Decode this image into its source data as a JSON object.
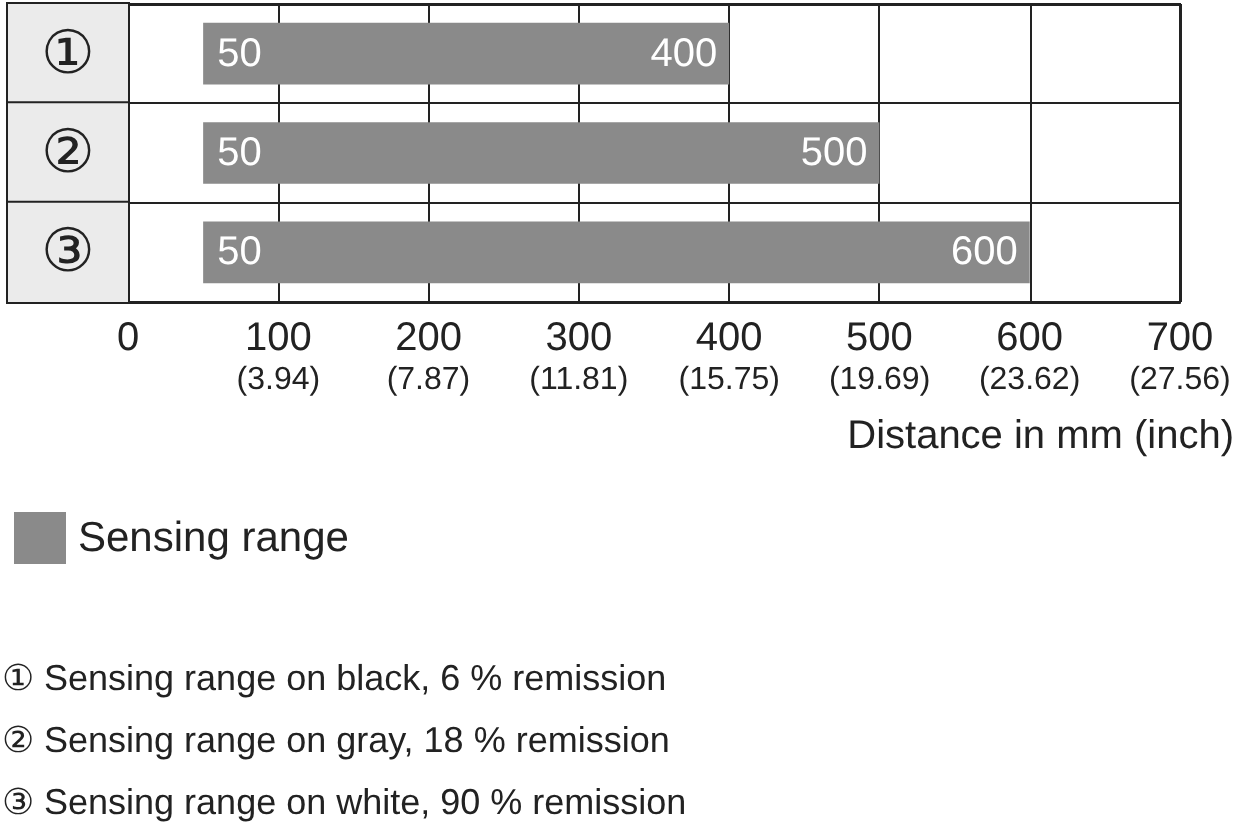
{
  "chart_data": {
    "type": "bar",
    "orientation": "horizontal",
    "categories": [
      "①",
      "②",
      "③"
    ],
    "series": [
      {
        "name": "Sensing range",
        "color": "#8a8a8a",
        "base": [
          50,
          50,
          50
        ],
        "values": [
          350,
          450,
          550
        ]
      }
    ],
    "xlim": [
      0,
      700
    ],
    "xticks": [
      0,
      100,
      200,
      300,
      400,
      500,
      600,
      700
    ],
    "x2lim": [
      0,
      27.56
    ],
    "x2ticks": [
      {
        "value": 3.94,
        "label": "(3.94)"
      },
      {
        "value": 7.87,
        "label": "(7.87)"
      },
      {
        "value": 11.81,
        "label": "(11.81)"
      },
      {
        "value": 15.75,
        "label": "(15.75)"
      },
      {
        "value": 19.69,
        "label": "(19.69)"
      },
      {
        "value": 23.62,
        "label": "(23.62)"
      },
      {
        "value": 27.56,
        "label": "(27.56)"
      }
    ],
    "xlabel": "Distance in mm (inch)",
    "grid": true,
    "legend": "bottom left",
    "annotations": [
      {
        "text": "50",
        "x": 50,
        "y": "①"
      },
      {
        "text": "400",
        "x": 400,
        "y": "①"
      },
      {
        "text": "50",
        "x": 50,
        "y": "②"
      },
      {
        "text": "500",
        "x": 500,
        "y": "②"
      },
      {
        "text": "50",
        "x": 50,
        "y": "③"
      },
      {
        "text": "600",
        "x": 600,
        "y": "③"
      },
      "① Sensing range on black, 6 % remission",
      "② Sensing range on gray, 18 % remission",
      "③ Sensing range on white, 90 % remission"
    ]
  }
}
